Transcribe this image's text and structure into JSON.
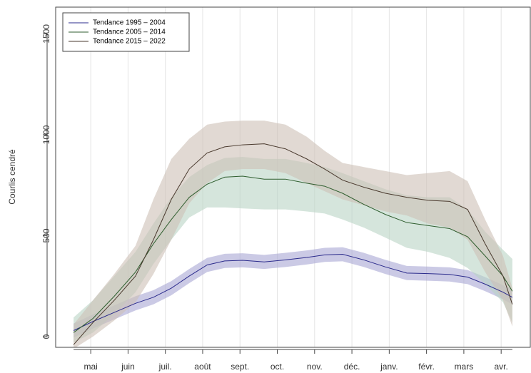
{
  "chart_data": {
    "type": "line",
    "y_label": "Courlis cendré",
    "x": [
      -0.46,
      0.06,
      0.63,
      1.2,
      1.68,
      2.16,
      2.64,
      3.12,
      3.59,
      4.07,
      4.65,
      5.22,
      5.79,
      6.27,
      6.75,
      7.32,
      7.9,
      8.47,
      9.04,
      9.62,
      10.1,
      10.57,
      11.05,
      11.3
    ],
    "xlim": [
      -0.94,
      11.8
    ],
    "xticks": [
      {
        "value": 0,
        "label": "mai"
      },
      {
        "value": 1,
        "label": "juin"
      },
      {
        "value": 2,
        "label": "juil."
      },
      {
        "value": 3,
        "label": "août"
      },
      {
        "value": 4,
        "label": "sept."
      },
      {
        "value": 5,
        "label": "oct."
      },
      {
        "value": 6,
        "label": "nov."
      },
      {
        "value": 7,
        "label": "déc."
      },
      {
        "value": 8,
        "label": "janv."
      },
      {
        "value": 9,
        "label": "févr."
      },
      {
        "value": 10,
        "label": "mars"
      },
      {
        "value": 11,
        "label": "avr."
      }
    ],
    "ylim": [
      -53,
      1632
    ],
    "yticks": [
      0,
      500,
      1000,
      1500
    ],
    "grid": "x",
    "legend": "top-left",
    "series": [
      {
        "name": "Tendance 1995 – 2004",
        "color": "#2b2b8c",
        "band_color": "#a9a6d4",
        "values": [
          30,
          75,
          120,
          165,
          195,
          240,
          300,
          355,
          375,
          378,
          370,
          380,
          392,
          405,
          408,
          380,
          345,
          315,
          312,
          308,
          295,
          260,
          220,
          195
        ],
        "lower": [
          -5,
          40,
          85,
          130,
          160,
          205,
          265,
          320,
          340,
          343,
          335,
          345,
          357,
          370,
          373,
          345,
          310,
          280,
          277,
          273,
          260,
          225,
          185,
          160
        ],
        "upper": [
          65,
          110,
          155,
          200,
          230,
          275,
          335,
          390,
          410,
          413,
          405,
          415,
          427,
          440,
          443,
          415,
          380,
          350,
          347,
          343,
          330,
          295,
          255,
          230
        ]
      },
      {
        "name": "Tendance 2005 – 2014",
        "color": "#2f5e2f",
        "band_color": "#b9d3c4",
        "values": [
          20,
          90,
          200,
          320,
          460,
          580,
          690,
          755,
          790,
          795,
          780,
          780,
          760,
          745,
          710,
          655,
          605,
          565,
          550,
          535,
          495,
          400,
          300,
          225
        ],
        "lower": [
          -30,
          20,
          110,
          220,
          360,
          480,
          590,
          640,
          640,
          635,
          630,
          630,
          620,
          610,
          580,
          540,
          490,
          440,
          420,
          390,
          340,
          260,
          170,
          70
        ],
        "upper": [
          95,
          180,
          300,
          420,
          560,
          690,
          790,
          850,
          885,
          890,
          880,
          880,
          860,
          840,
          810,
          770,
          730,
          700,
          690,
          690,
          630,
          520,
          430,
          385
        ]
      },
      {
        "name": "Tendance 2015 – 2022",
        "color": "#4a3a2e",
        "band_color": "#cdbfb5",
        "values": [
          -40,
          70,
          180,
          300,
          480,
          680,
          830,
          910,
          940,
          950,
          955,
          930,
          880,
          830,
          775,
          740,
          710,
          690,
          675,
          670,
          630,
          460,
          300,
          160
        ],
        "lower": [
          -60,
          0,
          80,
          170,
          310,
          480,
          660,
          760,
          820,
          830,
          830,
          810,
          760,
          720,
          680,
          650,
          620,
          600,
          560,
          540,
          480,
          320,
          180,
          50
        ],
        "upper": [
          60,
          180,
          310,
          450,
          680,
          880,
          980,
          1050,
          1065,
          1070,
          1070,
          1050,
          990,
          920,
          860,
          840,
          820,
          800,
          810,
          820,
          770,
          580,
          400,
          240
        ]
      }
    ]
  }
}
